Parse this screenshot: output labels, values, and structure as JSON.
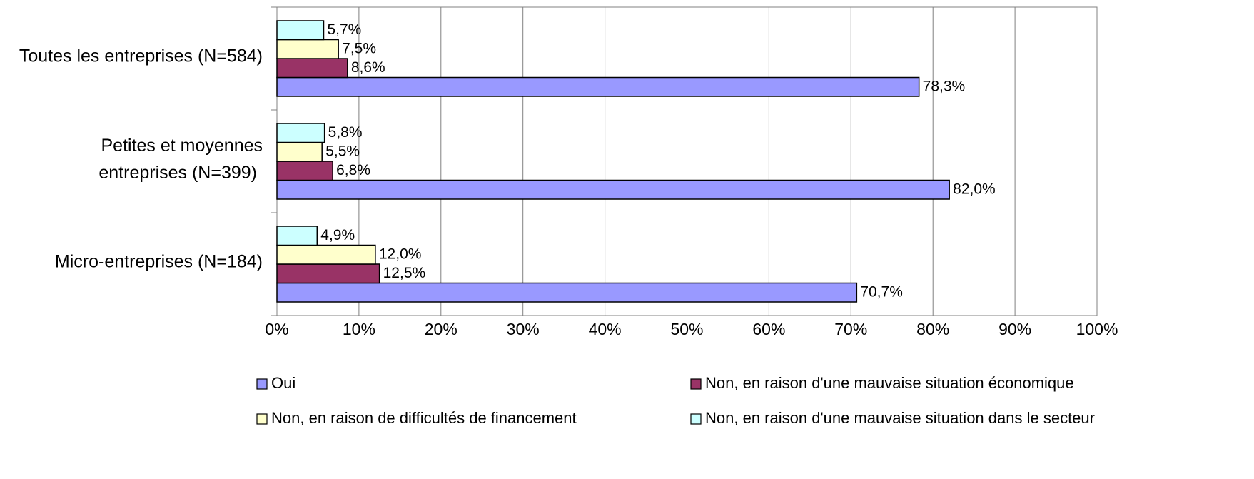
{
  "chart_data": {
    "type": "barh",
    "categories": [
      "Toutes les entreprises (N=584)",
      "Petites et moyennes entreprises (N=399)",
      "Micro-entreprises (N=184)"
    ],
    "series": [
      {
        "name": "Oui",
        "color": "#9999ff",
        "values": [
          78.3,
          82.0,
          70.7
        ],
        "value_labels": [
          "78,3%",
          "82,0%",
          "70,7%"
        ]
      },
      {
        "name": "Non, en raison d'une mauvaise situation économique",
        "color": "#993366",
        "values": [
          8.6,
          6.8,
          12.5
        ],
        "value_labels": [
          "8,6%",
          "6,8%",
          "12,5%"
        ]
      },
      {
        "name": "Non, en raison de difficultés de financement",
        "color": "#ffffcc",
        "values": [
          7.5,
          5.5,
          12.0
        ],
        "value_labels": [
          "7,5%",
          "5,5%",
          "12,0%"
        ]
      },
      {
        "name": "Non, en raison d'une mauvaise situation dans le secteur",
        "color": "#ccffff",
        "values": [
          5.7,
          5.8,
          4.9
        ],
        "value_labels": [
          "5,7%",
          "5,8%",
          "4,9%"
        ]
      }
    ],
    "xlim": [
      0,
      100
    ],
    "xticks": [
      {
        "value": 0,
        "label": "0%"
      },
      {
        "value": 10,
        "label": "10%"
      },
      {
        "value": 20,
        "label": "20%"
      },
      {
        "value": 30,
        "label": "30%"
      },
      {
        "value": 40,
        "label": "40%"
      },
      {
        "value": 50,
        "label": "50%"
      },
      {
        "value": 60,
        "label": "60%"
      },
      {
        "value": 70,
        "label": "70%"
      },
      {
        "value": 80,
        "label": "80%"
      },
      {
        "value": 90,
        "label": "90%"
      },
      {
        "value": 100,
        "label": "100%"
      }
    ],
    "grid": true,
    "legend": "bottom"
  }
}
